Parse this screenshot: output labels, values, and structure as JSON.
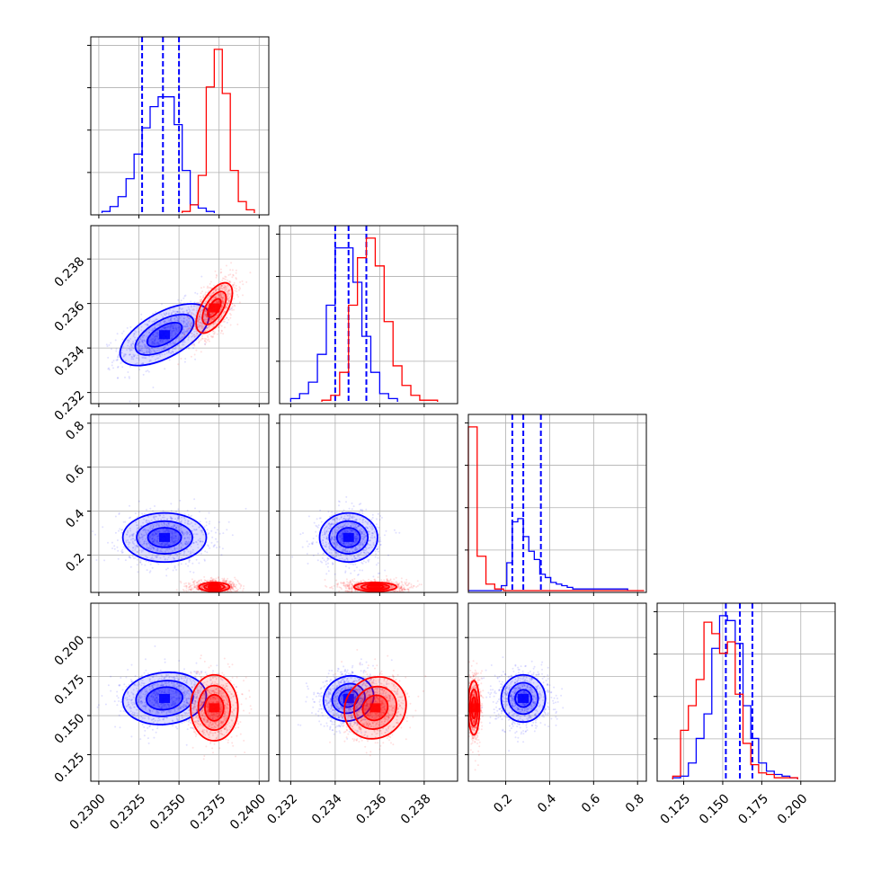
{
  "chart_data": {
    "type": "corner",
    "title": "",
    "grid": true,
    "series_colors": [
      "#0000ff",
      "#ff0000"
    ],
    "parameters": [
      {
        "range": [
          0.2295,
          0.2406
        ],
        "ticks": [
          0.23,
          0.2325,
          0.235,
          0.2375,
          0.24
        ],
        "tick_labels": [
          "0.2300",
          "0.2325",
          "0.2350",
          "0.2375",
          "0.2400"
        ],
        "series": [
          {
            "color": "#0000ff",
            "mean": 0.2341,
            "sd": 0.0014,
            "quantiles": [
              0.2327,
              0.234,
              0.235
            ],
            "hist": {
              "start": 0.2302,
              "width": 0.0005,
              "heights": [
                1,
                4,
                10,
                21,
                36,
                52,
                65,
                71,
                71,
                54,
                26,
                5,
                3,
                1
              ]
            }
          },
          {
            "color": "#ff0000",
            "mean": 0.2372,
            "sd": 0.0007,
            "hist": {
              "start": 0.2352,
              "width": 0.0005,
              "heights": [
                1,
                5,
                23,
                77,
                100,
                73,
                26,
                7,
                2
              ]
            }
          }
        ]
      },
      {
        "range": [
          0.2315,
          0.2395
        ],
        "ticks": [
          0.232,
          0.234,
          0.236,
          0.238
        ],
        "tick_labels": [
          "0.232",
          "0.234",
          "0.236",
          "0.238"
        ],
        "series": [
          {
            "color": "#0000ff",
            "mean": 0.2346,
            "sd": 0.0007,
            "quantiles": [
              0.234,
              0.2346,
              0.2354
            ],
            "hist": {
              "start": 0.232,
              "width": 0.0004,
              "heights": [
                2,
                5,
                12,
                29,
                59,
                94,
                94,
                73,
                40,
                18,
                5,
                2
              ]
            }
          },
          {
            "color": "#ff0000",
            "mean": 0.2358,
            "sd": 0.0007,
            "hist": {
              "start": 0.2334,
              "width": 0.0004,
              "heights": [
                1,
                4,
                18,
                59,
                88,
                100,
                83,
                49,
                22,
                10,
                4,
                1,
                1
              ]
            }
          }
        ]
      },
      {
        "range": [
          0.03,
          0.84
        ],
        "ticks": [
          0.2,
          0.4,
          0.6,
          0.8
        ],
        "tick_labels": [
          "0.2",
          "0.4",
          "0.6",
          "0.8"
        ],
        "series": [
          {
            "color": "#0000ff",
            "mean": 0.28,
            "sd": 0.06,
            "quantiles": [
              0.23,
              0.28,
              0.36
            ],
            "hist": {
              "start": 0.03,
              "width": 0.025,
              "heights": [
                0,
                0,
                0,
                0,
                0,
                0,
                3,
                17,
                42,
                44,
                33,
                24,
                19,
                10,
                8,
                5,
                4,
                3,
                2,
                1,
                1,
                1,
                1,
                1,
                1,
                1,
                1,
                1,
                1
              ]
            }
          },
          {
            "color": "#ff0000",
            "mean": 0.055,
            "sd": 0.015,
            "hist": {
              "start": 0.03,
              "width": 0.04,
              "heights": [
                100,
                21,
                4,
                1,
                0,
                0,
                0,
                0,
                0,
                0,
                0,
                0,
                0,
                0,
                0,
                0,
                0,
                0,
                0,
                0
              ]
            }
          }
        ]
      },
      {
        "range": [
          0.108,
          0.222
        ],
        "ticks": [
          0.125,
          0.15,
          0.175,
          0.2
        ],
        "tick_labels": [
          "0.125",
          "0.150",
          "0.175",
          "0.200"
        ],
        "series": [
          {
            "color": "#0000ff",
            "mean": 0.161,
            "sd": 0.009,
            "quantiles": [
              0.152,
              0.161,
              0.169
            ],
            "hist": {
              "start": 0.118,
              "width": 0.005,
              "heights": [
                1,
                2,
                10,
                25,
                40,
                80,
                100,
                97,
                83,
                45,
                25,
                10,
                5,
                3,
                2,
                1
              ]
            }
          },
          {
            "color": "#ff0000",
            "mean": 0.155,
            "sd": 0.01,
            "hist": {
              "start": 0.118,
              "width": 0.005,
              "heights": [
                2,
                30,
                45,
                61,
                96,
                89,
                77,
                84,
                52,
                22,
                9,
                4,
                3,
                1,
                1,
                1
              ]
            }
          }
        ]
      }
    ],
    "pairs": [
      {
        "row": 1,
        "col": 0,
        "series": [
          {
            "color": "#0000ff",
            "corr": 0.6,
            "levels": [
              3.2,
              2.1,
              1.25
            ]
          },
          {
            "color": "#ff0000",
            "corr": 0.6,
            "levels": [
              2.6,
              1.7,
              0.95
            ]
          }
        ]
      },
      {
        "row": 2,
        "col": 0,
        "series": [
          {
            "color": "#0000ff",
            "corr": 0.0,
            "levels": [
              3.0,
              2.0,
              1.2
            ]
          },
          {
            "color": "#ff0000",
            "corr": 0.0,
            "levels": [
              2.2,
              1.45,
              0.85
            ]
          }
        ]
      },
      {
        "row": 2,
        "col": 1,
        "series": [
          {
            "color": "#0000ff",
            "corr": 0.0,
            "levels": [
              3.0,
              2.0,
              1.2
            ]
          },
          {
            "color": "#ff0000",
            "corr": 0.0,
            "levels": [
              2.2,
              1.45,
              0.85
            ]
          }
        ]
      },
      {
        "row": 3,
        "col": 0,
        "series": [
          {
            "color": "#0000ff",
            "corr": 0.1,
            "levels": [
              3.0,
              2.05,
              1.3
            ]
          },
          {
            "color": "#ff0000",
            "corr": 0.0,
            "levels": [
              3.4,
              2.3,
              1.35
            ]
          }
        ]
      },
      {
        "row": 3,
        "col": 1,
        "series": [
          {
            "color": "#0000ff",
            "corr": 0.1,
            "levels": [
              2.6,
              1.7,
              1.0
            ]
          },
          {
            "color": "#ff0000",
            "corr": 0.1,
            "levels": [
              3.2,
              2.2,
              1.3
            ]
          }
        ]
      },
      {
        "row": 3,
        "col": 2,
        "series": [
          {
            "color": "#0000ff",
            "corr": 0.0,
            "levels": [
              2.7,
              1.8,
              1.0
            ]
          },
          {
            "color": "#ff0000",
            "corr": 0.0,
            "levels": [
              2.8,
              1.9,
              1.1
            ]
          }
        ]
      }
    ]
  }
}
